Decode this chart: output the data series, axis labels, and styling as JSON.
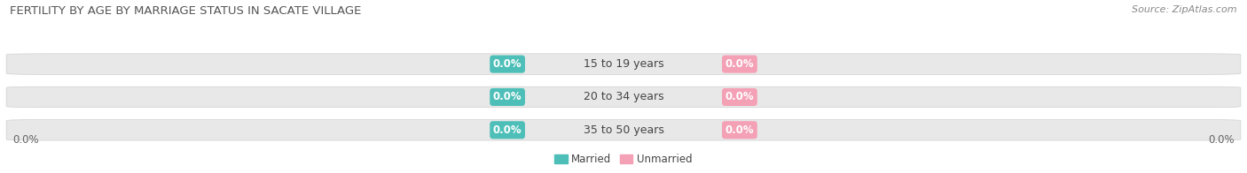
{
  "title": "FERTILITY BY AGE BY MARRIAGE STATUS IN SACATE VILLAGE",
  "source": "Source: ZipAtlas.com",
  "categories": [
    "15 to 19 years",
    "20 to 34 years",
    "35 to 50 years"
  ],
  "married_values": [
    0.0,
    0.0,
    0.0
  ],
  "unmarried_values": [
    0.0,
    0.0,
    0.0
  ],
  "married_color": "#4DBFB8",
  "unmarried_color": "#F4A0B5",
  "bar_bg_color": "#E8E8E8",
  "bar_border_color": "#D0D0D0",
  "title_fontsize": 9.5,
  "source_fontsize": 8,
  "label_fontsize": 8.5,
  "category_fontsize": 9,
  "background_color": "#FFFFFF",
  "legend_married": "Married",
  "legend_unmarried": "Unmarried",
  "x_tick_left": "0.0%",
  "x_tick_right": "0.0%",
  "title_color": "#555555",
  "source_color": "#888888",
  "axis_label_color": "#666666",
  "category_color": "#444444"
}
